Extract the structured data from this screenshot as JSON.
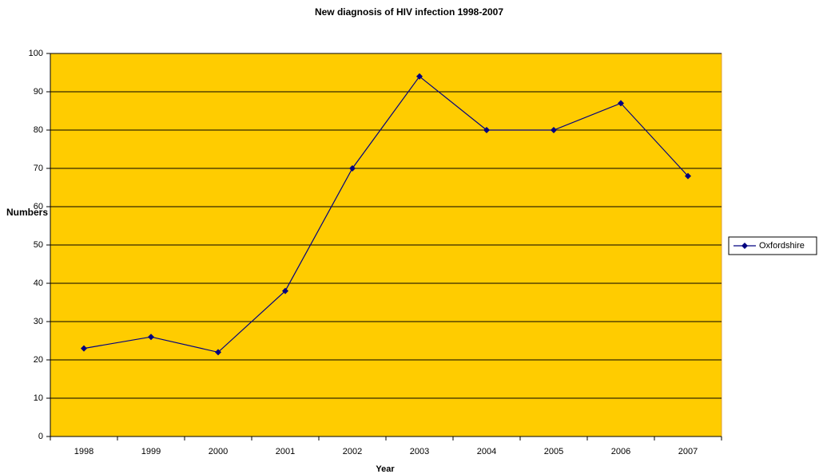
{
  "chart_data": {
    "type": "line",
    "title": "New diagnosis of HIV infection 1998-2007",
    "x_label": "Year",
    "y_label": "Numbers",
    "categories": [
      "1998",
      "1999",
      "2000",
      "2001",
      "2002",
      "2003",
      "2004",
      "2005",
      "2006",
      "2007"
    ],
    "series": [
      {
        "name": "Oxfordshire",
        "color": "#000080",
        "values": [
          23,
          26,
          22,
          38,
          70,
          94,
          80,
          80,
          87,
          68
        ]
      }
    ],
    "ylim": [
      0,
      100
    ],
    "yticks": [
      0,
      10,
      20,
      30,
      40,
      50,
      60,
      70,
      80,
      90,
      100
    ],
    "grid": true,
    "legend": "right",
    "plot_background": "#ffcc00"
  }
}
